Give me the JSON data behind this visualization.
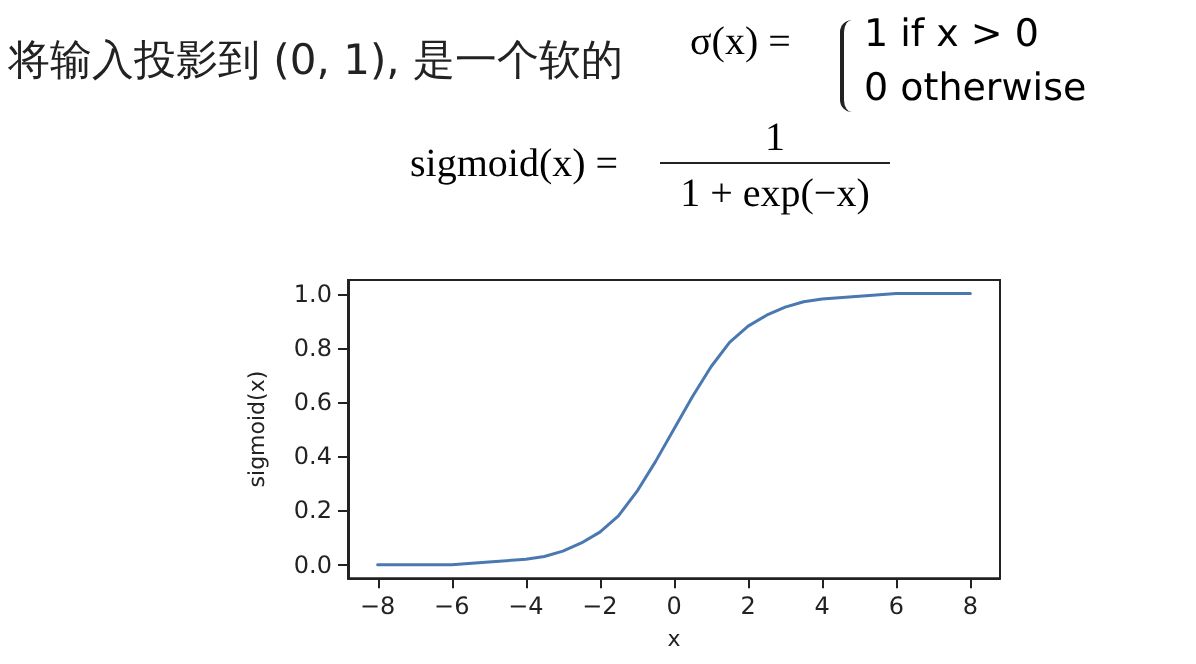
{
  "chart_data": {
    "type": "line",
    "title": "将输入投影到 (0, 1), 是一个软的",
    "annotations": [
      "σ(x) =",
      "1  if x > 0",
      "0  otherwise",
      "sigmoid(x) =",
      "1",
      "1 + exp(−x)"
    ],
    "xlabel": "x",
    "ylabel": "sigmoid(x)",
    "x": [
      -8,
      -7,
      -6,
      -5,
      -4,
      -3.5,
      -3,
      -2.5,
      -2,
      -1.5,
      -1,
      -0.5,
      0,
      0.5,
      1,
      1.5,
      2,
      2.5,
      3,
      3.5,
      4,
      5,
      6,
      7,
      8
    ],
    "series": [
      {
        "color": "#4a78b0",
        "values": [
          0.0,
          0.0,
          0.0,
          0.01,
          0.02,
          0.03,
          0.05,
          0.08,
          0.12,
          0.18,
          0.27,
          0.38,
          0.5,
          0.62,
          0.73,
          0.82,
          0.88,
          0.92,
          0.95,
          0.97,
          0.98,
          0.99,
          1.0,
          1.0,
          1.0
        ]
      }
    ],
    "xlim": [
      -8.8,
      8.8
    ],
    "xticks": [
      -8,
      -6,
      -4,
      -2,
      0,
      2,
      4,
      6,
      8
    ],
    "ylim": [
      -0.05,
      1.05
    ],
    "yticks": [
      {
        "value": 0,
        "label": "0.0"
      },
      0.2,
      0.4,
      0.6,
      0.8,
      {
        "value": 1,
        "label": "1.0"
      }
    ],
    "grid": false,
    "marker": "none",
    "line_style": "solid"
  }
}
